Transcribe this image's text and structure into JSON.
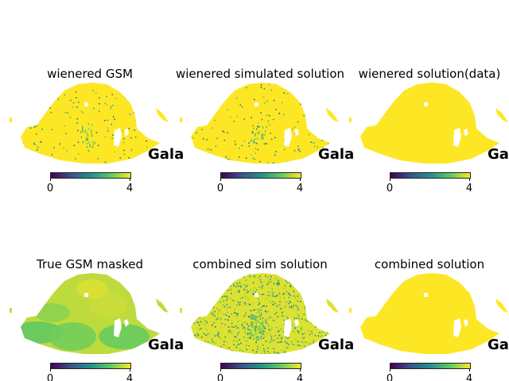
{
  "chart_data": [
    {
      "type": "heatmap",
      "title": "wienered GSM",
      "projection_label": "Gala",
      "colorbar": {
        "min": 0,
        "max": 4,
        "ticks": [
          "0",
          "4"
        ],
        "colormap": "viridis"
      },
      "fill_level": 4,
      "noise": "sparse"
    },
    {
      "type": "heatmap",
      "title": "wienered simulated solution",
      "projection_label": "Gala",
      "colorbar": {
        "min": 0,
        "max": 4,
        "ticks": [
          "0",
          "4"
        ],
        "colormap": "viridis"
      },
      "fill_level": 4,
      "noise": "sparse"
    },
    {
      "type": "heatmap",
      "title": "wienered solution(data)",
      "projection_label": "Gala",
      "colorbar": {
        "min": 0,
        "max": 4,
        "ticks": [
          "0",
          "4"
        ],
        "colormap": "viridis"
      },
      "fill_level": 4,
      "noise": "none"
    },
    {
      "type": "heatmap",
      "title": "True GSM masked",
      "projection_label": "Gala",
      "colorbar": {
        "min": 0,
        "max": 4,
        "ticks": [
          "0",
          "4"
        ],
        "colormap": "viridis"
      },
      "fill_level": 3.6,
      "noise": "smooth"
    },
    {
      "type": "heatmap",
      "title": "combined sim solution",
      "projection_label": "Gala",
      "colorbar": {
        "min": 0,
        "max": 4,
        "ticks": [
          "0",
          "4"
        ],
        "colormap": "viridis"
      },
      "fill_level": 3.8,
      "noise": "dense"
    },
    {
      "type": "heatmap",
      "title": "combined solution",
      "projection_label": "Gala",
      "colorbar": {
        "min": 0,
        "max": 4,
        "ticks": [
          "0",
          "4"
        ],
        "colormap": "viridis"
      },
      "fill_level": 4,
      "noise": "none"
    }
  ],
  "colors": {
    "viridis_low": "#440154",
    "viridis_mid1": "#3b528b",
    "viridis_mid2": "#21918c",
    "viridis_mid3": "#5ec962",
    "viridis_high": "#fde725",
    "mask": "#ffffff"
  }
}
